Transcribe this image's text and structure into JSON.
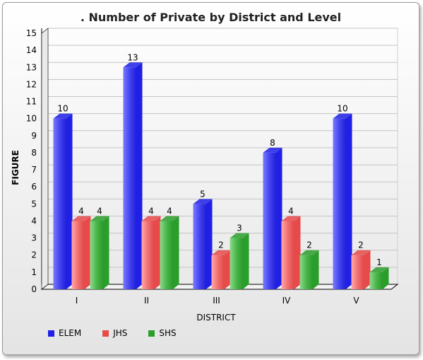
{
  "chart_data": {
    "type": "bar",
    "title": ".  Number of Private by District and Level",
    "xlabel": "DISTRICT",
    "ylabel": "FIGURE",
    "ylim": [
      0,
      15
    ],
    "yticks": [
      0,
      1,
      2,
      3,
      4,
      5,
      6,
      7,
      8,
      9,
      10,
      11,
      12,
      13,
      14,
      15
    ],
    "categories": [
      "I",
      "II",
      "III",
      "IV",
      "V"
    ],
    "series": [
      {
        "name": "ELEM",
        "values": [
          10,
          13,
          5,
          8,
          10
        ],
        "color": "#1f1fe6"
      },
      {
        "name": "JHS",
        "values": [
          4,
          4,
          2,
          4,
          2
        ],
        "color": "#e84a4a"
      },
      {
        "name": "SHS",
        "values": [
          4,
          4,
          3,
          2,
          1
        ],
        "color": "#2a9e2a"
      }
    ],
    "grid": true,
    "legend_position": "bottom-left",
    "style": "3d"
  }
}
